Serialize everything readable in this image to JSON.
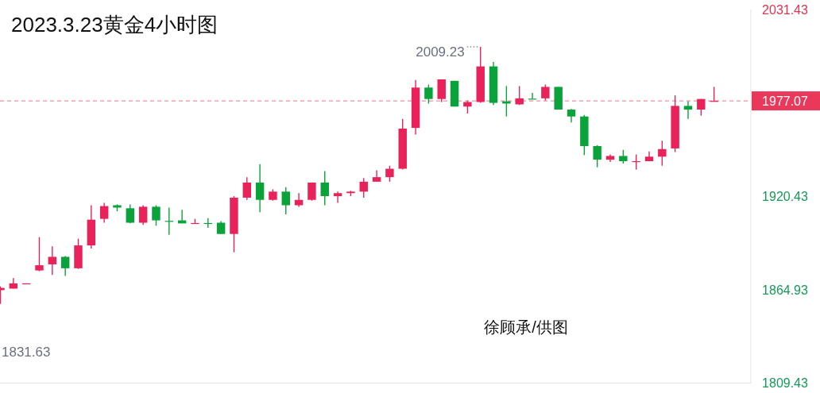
{
  "chart_data": {
    "type": "candlestick",
    "title": "2023.3.23黄金4小时图",
    "categories": [
      null,
      null,
      null,
      null,
      null,
      null,
      null,
      null,
      null,
      null,
      null,
      null,
      null,
      null,
      null,
      null,
      null,
      null,
      null,
      null,
      null,
      null,
      null,
      null,
      null,
      null,
      null,
      null,
      null,
      null,
      null,
      null,
      null,
      null,
      null,
      null,
      null,
      null,
      null,
      null,
      null,
      null,
      null,
      null,
      null,
      null,
      null,
      null,
      null,
      null,
      null,
      null,
      null,
      null,
      null,
      null
    ],
    "ohlc": [
      [
        1864.5,
        1866.7,
        1856.3,
        1865.8
      ],
      [
        1865.4,
        1871.7,
        1865.4,
        1868.5
      ],
      [
        1868.3,
        1868.5,
        1868.1,
        1868.5
      ],
      [
        1876.2,
        1896.0,
        1875.7,
        1879.3
      ],
      [
        1879.8,
        1890.6,
        1873.5,
        1884.3
      ],
      [
        1884.3,
        1884.8,
        1873.0,
        1877.5
      ],
      [
        1877.5,
        1895.1,
        1877.1,
        1891.1
      ],
      [
        1891.1,
        1915.0,
        1889.3,
        1906.4
      ],
      [
        1906.9,
        1916.4,
        1904.6,
        1914.5
      ],
      [
        1915.0,
        1915.5,
        1911.4,
        1913.6
      ],
      [
        1913.2,
        1915.5,
        1904.2,
        1904.6
      ],
      [
        1904.6,
        1915.0,
        1903.3,
        1914.1
      ],
      [
        1914.1,
        1915.0,
        1902.8,
        1906.0
      ],
      [
        1905.7,
        1913.6,
        1897.4,
        1905.5
      ],
      [
        1906.0,
        1912.3,
        1904.2,
        1904.2
      ],
      [
        1904.2,
        1906.9,
        1904.2,
        1904.4
      ],
      [
        1904.4,
        1907.3,
        1901.5,
        1904.2
      ],
      [
        1904.6,
        1905.5,
        1897.9,
        1897.9
      ],
      [
        1897.9,
        1920.4,
        1887.0,
        1919.5
      ],
      [
        1919.5,
        1931.7,
        1918.2,
        1928.5
      ],
      [
        1928.5,
        1939.4,
        1910.9,
        1918.2
      ],
      [
        1918.2,
        1924.5,
        1917.7,
        1923.1
      ],
      [
        1923.1,
        1925.8,
        1909.6,
        1915.0
      ],
      [
        1915.0,
        1922.2,
        1914.1,
        1918.2
      ],
      [
        1918.2,
        1928.5,
        1917.7,
        1928.5
      ],
      [
        1928.5,
        1935.3,
        1915.0,
        1920.4
      ],
      [
        1920.4,
        1923.1,
        1916.4,
        1922.2
      ],
      [
        1922.2,
        1923.6,
        1920.4,
        1923.1
      ],
      [
        1923.1,
        1931.2,
        1919.5,
        1929.0
      ],
      [
        1929.0,
        1935.8,
        1929.0,
        1931.7
      ],
      [
        1931.7,
        1938.5,
        1929.0,
        1936.7
      ],
      [
        1936.7,
        1966.4,
        1936.2,
        1960.6
      ],
      [
        1961.0,
        1989.5,
        1957.0,
        1985.0
      ],
      [
        1985.0,
        1986.8,
        1975.5,
        1978.2
      ],
      [
        1978.2,
        1989.9,
        1976.4,
        1989.9
      ],
      [
        1989.0,
        1989.0,
        1973.7,
        1973.7
      ],
      [
        1973.7,
        1977.3,
        1969.6,
        1976.4
      ],
      [
        1976.4,
        2009.23,
        1975.9,
        1997.6
      ],
      [
        1997.6,
        2000.3,
        1974.6,
        1975.9
      ],
      [
        1976.8,
        1985.9,
        1967.8,
        1975.5
      ],
      [
        1975.0,
        1985.9,
        1974.6,
        1978.6
      ],
      [
        1978.4,
        1981.8,
        1978.2,
        1978.2
      ],
      [
        1978.6,
        1986.8,
        1977.3,
        1985.4
      ],
      [
        1985.4,
        1985.4,
        1971.9,
        1971.9
      ],
      [
        1971.9,
        1972.3,
        1964.2,
        1967.8
      ],
      [
        1967.8,
        1968.7,
        1944.8,
        1950.2
      ],
      [
        1950.2,
        1950.7,
        1937.6,
        1942.1
      ],
      [
        1942.1,
        1945.2,
        1940.7,
        1944.3
      ],
      [
        1944.3,
        1947.9,
        1939.8,
        1941.2
      ],
      [
        1940.9,
        1945.2,
        1936.2,
        1941.2
      ],
      [
        1941.2,
        1947.0,
        1941.2,
        1943.9
      ],
      [
        1943.9,
        1953.4,
        1938.5,
        1948.4
      ],
      [
        1948.8,
        1980.4,
        1946.6,
        1974.1
      ],
      [
        1974.1,
        1976.8,
        1966.4,
        1971.9
      ],
      [
        1971.9,
        1978.2,
        1968.3,
        1978.2
      ],
      [
        1976.9,
        1985.4,
        1976.8,
        1977.07
      ]
    ],
    "colors": [
      "#e9235a",
      "#e9235a",
      "#e9235a",
      "#e9235a",
      "#e9235a",
      "#0aa33b",
      "#e9235a",
      "#e9235a",
      "#e9235a",
      "#0aa33b",
      "#0aa33b",
      "#e9235a",
      "#0aa33b",
      "#0aa33b",
      "#0aa33b",
      "#e9235a",
      "#0aa33b",
      "#0aa33b",
      "#e9235a",
      "#e9235a",
      "#0aa33b",
      "#e9235a",
      "#0aa33b",
      "#e9235a",
      "#e9235a",
      "#0aa33b",
      "#e9235a",
      "#e9235a",
      "#e9235a",
      "#e9235a",
      "#e9235a",
      "#e9235a",
      "#e9235a",
      "#0aa33b",
      "#e9235a",
      "#0aa33b",
      "#e9235a",
      "#e9235a",
      "#0aa33b",
      "#0aa33b",
      "#e9235a",
      "#0aa33b",
      "#e9235a",
      "#0aa33b",
      "#0aa33b",
      "#0aa33b",
      "#0aa33b",
      "#e9235a",
      "#0aa33b",
      "#e9235a",
      "#e9235a",
      "#e9235a",
      "#e9235a",
      "#0aa33b",
      "#e9235a",
      "#e9235a"
    ],
    "ylim": [
      1809.43,
      2031.43
    ],
    "yticks": [
      2031.43,
      1920.43,
      1864.93,
      1809.43
    ],
    "ref_lines": [
      {
        "axis": "y",
        "value": 1977.07,
        "label": "1977.07",
        "color": "#e9385a",
        "line_style": "dashed"
      }
    ],
    "annotations": [
      "2009.23",
      "1831.63",
      "徐顾承/供图"
    ],
    "grid": false
  }
}
